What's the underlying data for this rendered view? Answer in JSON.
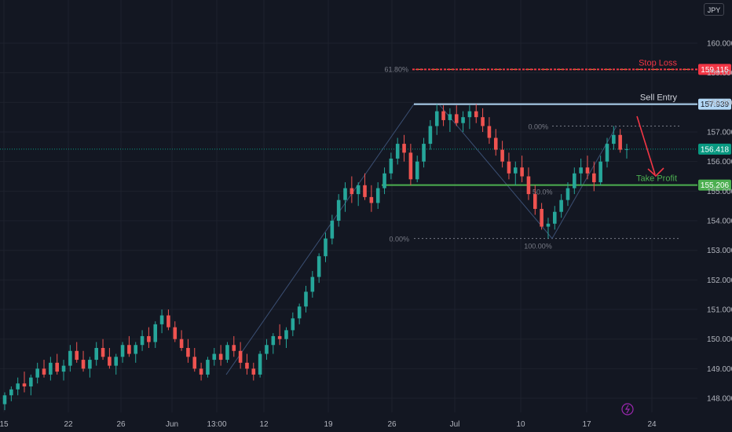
{
  "currency": "JPY",
  "colors": {
    "background": "#131722",
    "grid": "#1e222d",
    "candle_up": "#26a69a",
    "candle_down": "#ef5350",
    "stop_loss": "#f23645",
    "sell_entry": "#b2d7f5",
    "take_profit": "#4caf50",
    "current_price": "#089981"
  },
  "chart_data": {
    "type": "candlestick",
    "y_ticks": [
      "148.000",
      "149.000",
      "150.000",
      "151.000",
      "152.000",
      "153.000",
      "154.000",
      "155.000",
      "156.000",
      "157.000",
      "158.000",
      "159.000",
      "160.000"
    ],
    "y_tick_values": [
      148,
      149,
      150,
      151,
      152,
      153,
      154,
      155,
      156,
      157,
      158,
      159,
      160
    ],
    "ylim": [
      147.6,
      160.8
    ],
    "x_ticks": [
      "15",
      "22",
      "26",
      "Jun",
      "13:00",
      "12",
      "19",
      "26",
      "Jul",
      "10",
      "17",
      "24"
    ],
    "grid": true,
    "levels": [
      {
        "id": "stop_loss",
        "label": "Stop Loss",
        "value": 159.115,
        "value_label": "159.115"
      },
      {
        "id": "sell_entry",
        "label": "Sell Entry",
        "value": 157.939,
        "value_label": "157.939"
      },
      {
        "id": "take_profit",
        "label": "Take Profit",
        "value": 155.206,
        "value_label": "155.206"
      }
    ],
    "current_price": {
      "value": 156.418,
      "value_label": "156.418"
    },
    "fib_left": {
      "label": "61.80%",
      "value": 159.115
    },
    "fib_box": {
      "top_label": "0.00%",
      "top_value": 157.2,
      "mid_label": "50.0%",
      "bottom_label": "100.00%",
      "bottom_value": 153.4
    },
    "fib_main_zero": {
      "label": "0.00%",
      "value": 153.4
    },
    "bars": [
      [
        147.8,
        148.2,
        147.6,
        148.1
      ],
      [
        148.1,
        148.4,
        147.9,
        148.3
      ],
      [
        148.3,
        148.7,
        148.1,
        148.5
      ],
      [
        148.5,
        148.9,
        148.2,
        148.4
      ],
      [
        148.4,
        148.8,
        148.1,
        148.7
      ],
      [
        148.7,
        149.2,
        148.5,
        149.0
      ],
      [
        149.0,
        149.3,
        148.7,
        148.8
      ],
      [
        148.8,
        149.4,
        148.6,
        149.2
      ],
      [
        149.2,
        149.5,
        148.8,
        148.9
      ],
      [
        148.9,
        149.3,
        148.6,
        149.1
      ],
      [
        149.1,
        149.8,
        148.9,
        149.6
      ],
      [
        149.6,
        149.9,
        149.2,
        149.3
      ],
      [
        149.3,
        149.6,
        148.9,
        149.0
      ],
      [
        149.0,
        149.4,
        148.7,
        149.3
      ],
      [
        149.3,
        149.9,
        149.1,
        149.7
      ],
      [
        149.7,
        150.0,
        149.3,
        149.4
      ],
      [
        149.4,
        149.7,
        149.0,
        149.1
      ],
      [
        149.1,
        149.5,
        148.8,
        149.4
      ],
      [
        149.4,
        149.9,
        149.2,
        149.8
      ],
      [
        149.8,
        150.1,
        149.4,
        149.5
      ],
      [
        149.5,
        149.9,
        149.2,
        149.8
      ],
      [
        149.8,
        150.3,
        149.6,
        150.1
      ],
      [
        150.1,
        150.4,
        149.7,
        149.9
      ],
      [
        149.9,
        150.6,
        149.7,
        150.5
      ],
      [
        150.5,
        151.0,
        150.2,
        150.8
      ],
      [
        150.8,
        151.0,
        150.3,
        150.4
      ],
      [
        150.4,
        150.6,
        149.9,
        150.0
      ],
      [
        150.0,
        150.3,
        149.6,
        149.7
      ],
      [
        149.7,
        150.0,
        149.2,
        149.4
      ],
      [
        149.4,
        149.7,
        148.9,
        149.0
      ],
      [
        149.0,
        149.2,
        148.6,
        148.8
      ],
      [
        148.8,
        149.4,
        148.7,
        149.3
      ],
      [
        149.3,
        149.7,
        149.1,
        149.5
      ],
      [
        149.5,
        149.8,
        149.1,
        149.3
      ],
      [
        149.3,
        149.9,
        149.2,
        149.8
      ],
      [
        149.8,
        150.1,
        149.4,
        149.6
      ],
      [
        149.6,
        149.9,
        149.0,
        149.2
      ],
      [
        149.2,
        149.5,
        148.8,
        149.0
      ],
      [
        149.0,
        149.2,
        148.6,
        148.8
      ],
      [
        148.8,
        149.6,
        148.7,
        149.5
      ],
      [
        149.5,
        150.0,
        149.3,
        149.8
      ],
      [
        149.8,
        150.2,
        149.5,
        150.1
      ],
      [
        150.1,
        150.5,
        149.8,
        150.0
      ],
      [
        150.0,
        150.4,
        149.7,
        150.3
      ],
      [
        150.3,
        150.9,
        150.1,
        150.7
      ],
      [
        150.7,
        151.2,
        150.5,
        151.1
      ],
      [
        151.1,
        151.8,
        150.9,
        151.6
      ],
      [
        151.6,
        152.3,
        151.4,
        152.1
      ],
      [
        152.1,
        152.9,
        151.9,
        152.8
      ],
      [
        152.8,
        153.6,
        152.6,
        153.4
      ],
      [
        153.4,
        154.2,
        153.2,
        154.0
      ],
      [
        154.0,
        154.9,
        153.8,
        154.7
      ],
      [
        154.7,
        155.3,
        154.3,
        155.1
      ],
      [
        155.1,
        155.5,
        154.6,
        154.9
      ],
      [
        154.9,
        155.3,
        154.5,
        155.2
      ],
      [
        155.2,
        155.6,
        154.7,
        154.8
      ],
      [
        154.8,
        155.2,
        154.3,
        154.6
      ],
      [
        154.6,
        155.3,
        154.4,
        155.1
      ],
      [
        155.1,
        155.8,
        154.9,
        155.6
      ],
      [
        155.6,
        156.3,
        155.4,
        156.1
      ],
      [
        156.1,
        156.8,
        155.9,
        156.6
      ],
      [
        156.6,
        156.9,
        156.0,
        156.3
      ],
      [
        156.3,
        156.6,
        155.2,
        155.4
      ],
      [
        155.4,
        156.2,
        155.3,
        156.0
      ],
      [
        156.0,
        156.8,
        155.8,
        156.6
      ],
      [
        156.6,
        157.4,
        156.4,
        157.2
      ],
      [
        157.2,
        157.94,
        156.9,
        157.7
      ],
      [
        157.7,
        157.9,
        157.2,
        157.4
      ],
      [
        157.4,
        157.8,
        157.0,
        157.6
      ],
      [
        157.6,
        157.9,
        157.2,
        157.3
      ],
      [
        157.3,
        157.7,
        157.0,
        157.5
      ],
      [
        157.5,
        157.9,
        157.1,
        157.7
      ],
      [
        157.7,
        157.94,
        157.3,
        157.5
      ],
      [
        157.5,
        157.8,
        157.0,
        157.2
      ],
      [
        157.2,
        157.5,
        156.6,
        156.8
      ],
      [
        156.8,
        157.1,
        156.2,
        156.4
      ],
      [
        156.4,
        156.7,
        155.8,
        156.0
      ],
      [
        156.0,
        156.3,
        155.4,
        155.6
      ],
      [
        155.6,
        156.0,
        155.2,
        155.8
      ],
      [
        155.8,
        156.2,
        155.3,
        155.5
      ],
      [
        155.5,
        155.8,
        154.7,
        154.9
      ],
      [
        154.9,
        155.2,
        154.2,
        154.4
      ],
      [
        154.4,
        154.6,
        153.7,
        153.8
      ],
      [
        153.8,
        154.1,
        153.4,
        153.9
      ],
      [
        153.9,
        154.5,
        153.7,
        154.3
      ],
      [
        154.3,
        154.9,
        154.1,
        154.7
      ],
      [
        154.7,
        155.3,
        154.5,
        155.1
      ],
      [
        155.1,
        155.8,
        154.9,
        155.6
      ],
      [
        155.6,
        156.1,
        155.2,
        155.8
      ],
      [
        155.8,
        156.2,
        155.4,
        155.6
      ],
      [
        155.6,
        156.0,
        155.0,
        155.3
      ],
      [
        155.3,
        156.2,
        155.2,
        156.0
      ],
      [
        156.0,
        156.8,
        155.8,
        156.6
      ],
      [
        156.6,
        157.2,
        156.4,
        156.9
      ],
      [
        156.9,
        157.1,
        156.3,
        156.4
      ],
      [
        156.4,
        156.6,
        156.1,
        156.42
      ]
    ]
  },
  "annotations": {
    "stop_loss": "Stop Loss",
    "sell_entry": "Sell Entry",
    "take_profit": "Take Profit"
  }
}
